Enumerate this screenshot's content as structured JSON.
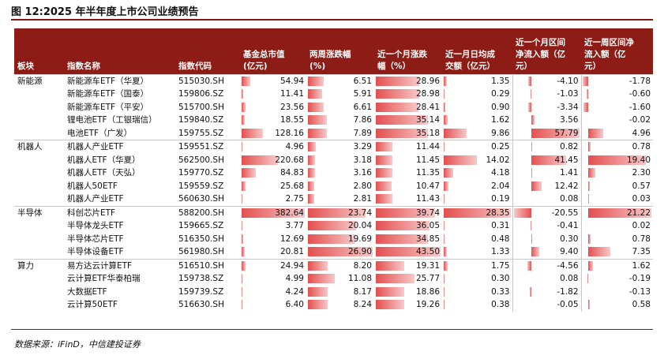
{
  "title": "图 12:2025 年半年度上市公司业绩预告",
  "source": "数据来源：iFinD，中信建投证券",
  "chart_data": {
    "type": "table",
    "columns": [
      "板块",
      "指数名称",
      "指数代码",
      "基金总市值（亿元）",
      "两周涨跌幅（%）",
      "近一个月涨跌幅（%）",
      "近一月日均成交额（亿元）",
      "近一个月区间净流入额（亿元）",
      "近一周区间净流入额（亿元）"
    ],
    "header_lines": [
      [
        "板块"
      ],
      [
        "指数名称"
      ],
      [
        "指数代码"
      ],
      [
        "基金总市值",
        "(亿元)"
      ],
      [
        "两周涨跌幅",
        "(%)"
      ],
      [
        "近一个月涨跌",
        "幅（%）"
      ],
      [
        "近一月日均成",
        "交额（亿元）"
      ],
      [
        "近一个月区间",
        "净流入额（亿",
        "元）"
      ],
      [
        "近一周区间净",
        "流入额（亿",
        "元）"
      ]
    ],
    "groups": [
      {
        "category": "新能源",
        "rows": [
          {
            "name": "新能源车ETF（华夏）",
            "code": "515030.SH",
            "values": [
              "54.94",
              "6.51",
              "28.96",
              "1.35",
              "-4.10",
              "-1.78"
            ]
          },
          {
            "name": "新能源车ETF（国泰）",
            "code": "159806.SZ",
            "values": [
              "11.41",
              "5.91",
              "28.98",
              "0.29",
              "-1.03",
              "-0.60"
            ]
          },
          {
            "name": "新能源车ETF（平安）",
            "code": "515700.SH",
            "values": [
              "23.56",
              "6.61",
              "28.41",
              "0.90",
              "-3.34",
              "-1.60"
            ]
          },
          {
            "name": "锂电池ETF（工银瑞信）",
            "code": "159840.SZ",
            "values": [
              "18.55",
              "7.86",
              "35.14",
              "1.62",
              "3.56",
              "-0.02"
            ]
          },
          {
            "name": "电池ETF（广发）",
            "code": "159755.SZ",
            "values": [
              "128.16",
              "7.89",
              "35.18",
              "9.86",
              "57.79",
              "4.96"
            ]
          }
        ]
      },
      {
        "category": "机器人",
        "rows": [
          {
            "name": "机器人产业ETF",
            "code": "159551.SZ",
            "values": [
              "4.96",
              "3.29",
              "11.44",
              "0.25",
              "0.82",
              "0.78"
            ]
          },
          {
            "name": "机器人ETF（华夏）",
            "code": "562500.SH",
            "values": [
              "220.68",
              "3.18",
              "11.45",
              "14.02",
              "41.45",
              "19.40"
            ]
          },
          {
            "name": "机器人ETF（天弘）",
            "code": "159770.SZ",
            "values": [
              "84.83",
              "3.16",
              "11.35",
              "4.18",
              "1.41",
              "2.30"
            ]
          },
          {
            "name": "机器人50ETF",
            "code": "159559.SZ",
            "values": [
              "25.68",
              "2.80",
              "10.47",
              "2.04",
              "12.42",
              "0.57"
            ]
          },
          {
            "name": "机器人产业ETF",
            "code": "560630.SH",
            "values": [
              "2.75",
              "2.81",
              "11.43",
              "0.19",
              "0.08",
              "0.03"
            ]
          }
        ]
      },
      {
        "category": "半导体",
        "rows": [
          {
            "name": "科创芯片ETF",
            "code": "588200.SH",
            "values": [
              "382.64",
              "23.74",
              "39.74",
              "28.35",
              "-20.55",
              "21.22"
            ]
          },
          {
            "name": "半导体龙头ETF",
            "code": "159665.SZ",
            "values": [
              "3.77",
              "20.04",
              "36.05",
              "0.31",
              "-0.41",
              "0.02"
            ]
          },
          {
            "name": "半导体芯片ETF",
            "code": "516350.SH",
            "values": [
              "12.69",
              "19.69",
              "34.85",
              "0.48",
              "0.30",
              "0.78"
            ]
          },
          {
            "name": "半导体设备ETF",
            "code": "561980.SH",
            "values": [
              "20.81",
              "26.90",
              "43.50",
              "1.33",
              "9.40",
              "7.35"
            ]
          }
        ]
      },
      {
        "category": "算力",
        "rows": [
          {
            "name": "易方达云计算ETF",
            "code": "516510.SH",
            "values": [
              "24.94",
              "8.20",
              "19.31",
              "1.75",
              "-4.56",
              "1.62"
            ]
          },
          {
            "name": "云计算ETF华泰柏瑞",
            "code": "159738.SZ",
            "values": [
              "4.99",
              "11.08",
              "25.77",
              "0.30",
              "0.08",
              "-0.19"
            ]
          },
          {
            "name": "大数据ETF",
            "code": "159739.SZ",
            "values": [
              "4.24",
              "8.17",
              "18.86",
              "0.33",
              "-1.82",
              "-0.13"
            ]
          },
          {
            "name": "云计算50ETF",
            "code": "516630.SH",
            "values": [
              "6.40",
              "8.24",
              "19.26",
              "0.38",
              "-0.05",
              "0.58"
            ]
          }
        ]
      }
    ]
  }
}
